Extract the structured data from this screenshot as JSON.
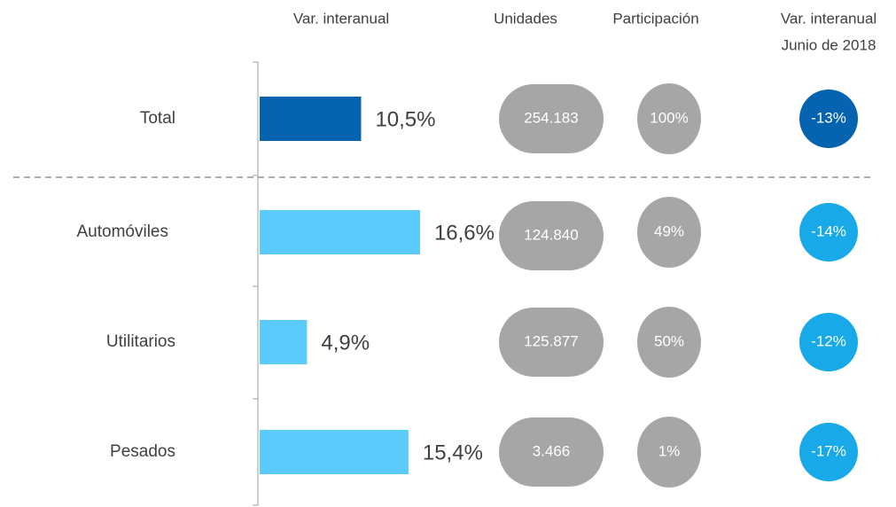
{
  "chart_data": {
    "type": "bar",
    "orientation": "horizontal",
    "categories": [
      "Total",
      "Automóviles",
      "Utilitarios",
      "Pesados"
    ],
    "series": [
      {
        "name": "Var. interanual",
        "colors": [
          "#0563b0",
          "#5bcbfb",
          "#5bcbfb",
          "#5bcbfb"
        ],
        "values": [
          10.5,
          16.6,
          4.9,
          15.4
        ],
        "value_labels": [
          "10,5%",
          "16,6%",
          "4,9%",
          "15,4%"
        ]
      }
    ],
    "xlim": [
      0,
      20
    ],
    "columns": [
      {
        "header": [
          "Unidades"
        ],
        "color": "#a6a6a6",
        "values": [
          "254.183",
          "124.840",
          "125.877",
          "3.466"
        ]
      },
      {
        "header": [
          "Participación"
        ],
        "color": "#a6a6a6",
        "values": [
          "100%",
          "49%",
          "50%",
          "1%"
        ]
      },
      {
        "header": [
          "Var. interanual",
          "Junio de 2018"
        ],
        "colors": [
          "#0563b0",
          "#17a9e8",
          "#17a9e8",
          "#17a9e8"
        ],
        "values": [
          "-13%",
          "-14%",
          "-12%",
          "-17%"
        ]
      }
    ]
  }
}
